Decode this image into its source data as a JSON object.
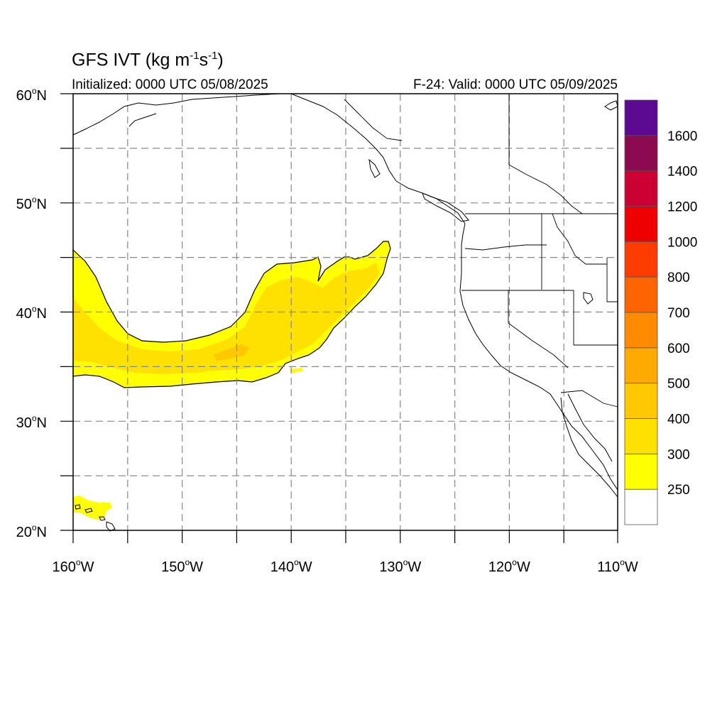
{
  "title": {
    "main": "GFS IVT (kg m",
    "sup1": "-1",
    "mid": "s",
    "sup2": "-1",
    "end": ")"
  },
  "subtitle_left": "Initialized: 0000 UTC 05/08/2025",
  "subtitle_right": "F-24: Valid: 0000 UTC 05/09/2025",
  "map": {
    "lon_range": [
      -160,
      -110
    ],
    "lat_range": [
      20,
      60
    ],
    "lon_ticks": [
      {
        "lon": -160,
        "label": "160",
        "hemi": "W"
      },
      {
        "lon": -150,
        "label": "150",
        "hemi": "W"
      },
      {
        "lon": -140,
        "label": "140",
        "hemi": "W"
      },
      {
        "lon": -130,
        "label": "130",
        "hemi": "W"
      },
      {
        "lon": -120,
        "label": "120",
        "hemi": "W"
      },
      {
        "lon": -110,
        "label": "110",
        "hemi": "W"
      }
    ],
    "lat_ticks": [
      {
        "lat": 20,
        "label": "20",
        "hemi": "N"
      },
      {
        "lat": 30,
        "label": "30",
        "hemi": "N"
      },
      {
        "lat": 40,
        "label": "40",
        "hemi": "N"
      },
      {
        "lat": 50,
        "label": "50",
        "hemi": "N"
      },
      {
        "lat": 60,
        "label": "60",
        "hemi": "N"
      }
    ],
    "gridlines": true
  },
  "colorbar": {
    "labels": [
      "250",
      "300",
      "400",
      "500",
      "600",
      "700",
      "800",
      "1000",
      "1200",
      "1400",
      "1600"
    ],
    "colors": [
      "#ffffff",
      "#ffff00",
      "#ffe100",
      "#ffc800",
      "#ffaa00",
      "#ff8c00",
      "#ff6400",
      "#ff3c00",
      "#ee0000",
      "#cc0033",
      "#8b0a50",
      "#5b0a91"
    ]
  },
  "colors": {
    "ivt_250_300": "#ffff00",
    "ivt_300_400": "#ffe100",
    "ivt_400_500": "#ffc800",
    "coast": "#000000",
    "grid": "#888888"
  }
}
